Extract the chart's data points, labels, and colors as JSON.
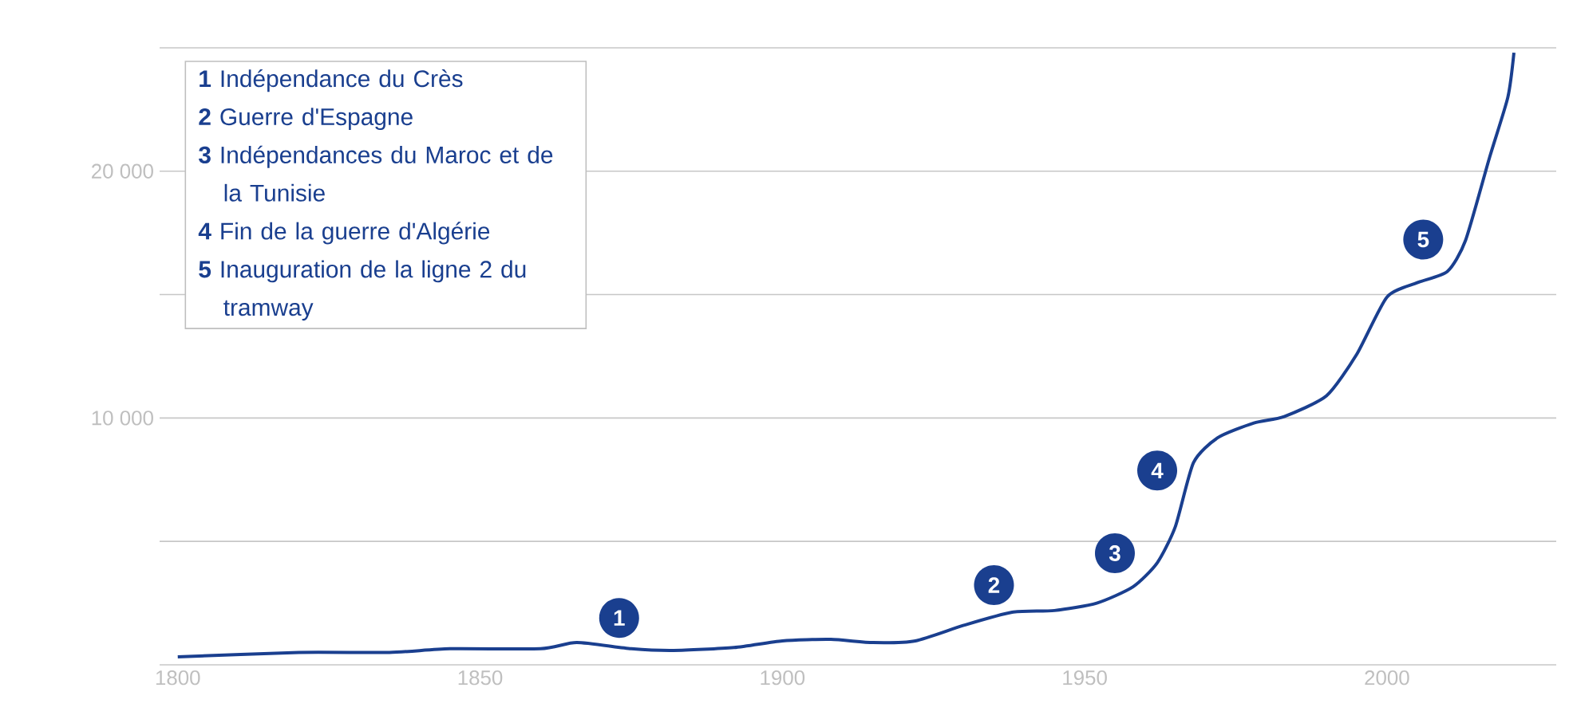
{
  "chart_data": {
    "type": "line",
    "x": [
      1800,
      1820,
      1835,
      1845,
      1860,
      1866,
      1875,
      1882,
      1892,
      1900,
      1908,
      1915,
      1922,
      1930,
      1938,
      1945,
      1952,
      1958,
      1962,
      1965,
      1968,
      1972,
      1978,
      1983,
      1990,
      1995,
      2000,
      2005,
      2010,
      2013,
      2017,
      2020,
      2021
    ],
    "series": [
      {
        "color": "#1a3f8f",
        "values": [
          320,
          500,
          500,
          650,
          650,
          900,
          650,
          580,
          700,
          970,
          1030,
          900,
          970,
          1600,
          2130,
          2200,
          2500,
          3160,
          4130,
          5600,
          8190,
          9200,
          9800,
          10060,
          10900,
          12580,
          14900,
          15480,
          15940,
          17200,
          20580,
          23000,
          24800
        ]
      }
    ],
    "xlim": [
      1797,
      2028
    ],
    "ylim": [
      0,
      25000
    ],
    "xticks": [
      1800,
      1850,
      1900,
      1950,
      2000
    ],
    "yticks": [
      {
        "value": 0,
        "label": null
      },
      {
        "value": 5000,
        "label": null
      },
      {
        "value": 10000,
        "label": "10 000"
      },
      {
        "value": 15000,
        "label": null
      },
      {
        "value": 20000,
        "label": "20 000"
      },
      {
        "value": 25000,
        "label": null
      }
    ],
    "grid": "y",
    "marker": "none",
    "line_style": "solid",
    "annotations": [
      {
        "text": "1",
        "x": 1873,
        "y": 1900
      },
      {
        "text": "2",
        "x": 1935,
        "y": 3230
      },
      {
        "text": "3",
        "x": 1955,
        "y": 4520
      },
      {
        "text": "4",
        "x": 1962,
        "y": 7870
      },
      {
        "text": "5",
        "x": 2006,
        "y": 17230
      },
      "**1** Indépendance du Crès",
      "**2** Guerre d'Espagne",
      "**3** Indépendances du Maroc et de la Tunisie",
      "**4** Fin de la guerre d'Algérie",
      "**5** Inauguration de la ligne 2 du tramway"
    ]
  }
}
